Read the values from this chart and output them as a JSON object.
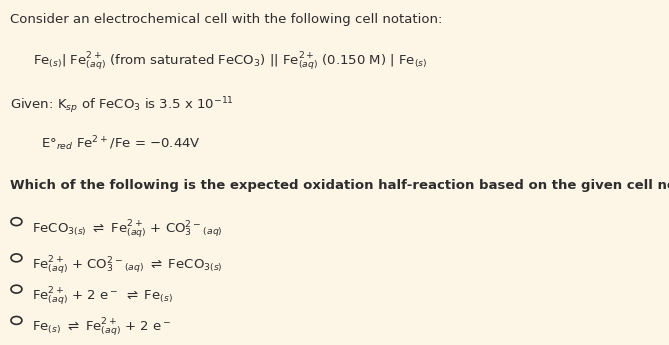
{
  "bg_color": "#fdf5e6",
  "text_color": "#8B0000",
  "bold_color": "#2d2d2d",
  "fig_width": 6.69,
  "fig_height": 3.45,
  "dpi": 100
}
